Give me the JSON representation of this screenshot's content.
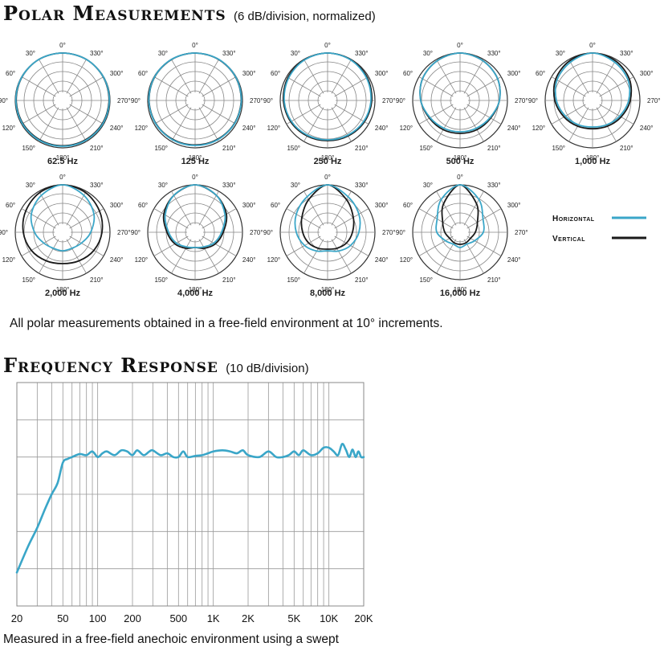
{
  "polar": {
    "title": "Polar Measurements",
    "subtitle": "(6 dB/division, normalized)",
    "note": "All polar measurements obtained in a free-field environment at 10° increments."
  },
  "frequency": {
    "title": "Frequency Response",
    "subtitle": "(10 dB/division)",
    "note": "Measured in a free-field anechoic environment using a swept"
  },
  "legend": {
    "horizontal_label": "Horizontal",
    "vertical_label": "Vertical",
    "horizontal_color": "#3aa6c8",
    "vertical_color": "#1a1a1a"
  },
  "chart_data": [
    {
      "type": "polar",
      "units": "dB",
      "division_db": 6,
      "normalized": true,
      "angle_labels": [
        "0°",
        "30°",
        "60°",
        "90°",
        "120°",
        "150°",
        "180°",
        "210°",
        "240°",
        "270°",
        "300°",
        "330°"
      ],
      "angles_deg": [
        0,
        30,
        60,
        90,
        120,
        150,
        180,
        210,
        240,
        270,
        300,
        330
      ],
      "series_names": [
        "Horizontal",
        "Vertical"
      ],
      "plots": [
        {
          "label": "62.5 Hz",
          "horizontal": [
            0,
            0,
            -0.2,
            -0.4,
            -0.6,
            -0.8,
            -1,
            -0.8,
            -0.6,
            -0.4,
            -0.2,
            0
          ],
          "vertical": [
            0,
            0,
            -0.3,
            -0.6,
            -0.9,
            -1.2,
            -1.3,
            -1.2,
            -0.9,
            -0.6,
            -0.3,
            0
          ]
        },
        {
          "label": "125 Hz",
          "horizontal": [
            0,
            0,
            -0.3,
            -0.7,
            -1,
            -1.3,
            -1.5,
            -1.3,
            -1,
            -0.7,
            -0.3,
            0
          ],
          "vertical": [
            0,
            -0.1,
            -0.4,
            -0.8,
            -1.2,
            -1.6,
            -1.8,
            -1.6,
            -1.2,
            -0.8,
            -0.4,
            -0.1
          ]
        },
        {
          "label": "250 Hz",
          "horizontal": [
            0,
            -0.5,
            -1.5,
            -2.5,
            -3.5,
            -4.5,
            -5,
            -4.5,
            -3.5,
            -2.5,
            -1.5,
            -0.5
          ],
          "vertical": [
            0,
            -0.3,
            -1,
            -2,
            -3,
            -4,
            -4.5,
            -4,
            -3,
            -2,
            -1,
            -0.3
          ]
        },
        {
          "label": "500 Hz",
          "horizontal": [
            0,
            -1,
            -2.5,
            -5,
            -8,
            -9.5,
            -10,
            -9.5,
            -8,
            -5,
            -2.5,
            -1
          ],
          "vertical": [
            0,
            -1,
            -2.5,
            -5,
            -7.5,
            -8.5,
            -9,
            -8.5,
            -7.5,
            -5,
            -2.5,
            -1
          ]
        },
        {
          "label": "1,000 Hz",
          "horizontal": [
            0,
            -2,
            -4,
            -7,
            -10,
            -12,
            -13,
            -12,
            -10,
            -7,
            -4,
            -2
          ],
          "vertical": [
            0,
            -1,
            -3,
            -6,
            -9,
            -11,
            -12,
            -11,
            -9,
            -6,
            -3,
            -1
          ]
        },
        {
          "label": "2,000 Hz",
          "horizontal": [
            0,
            -3,
            -7,
            -12,
            -16,
            -18,
            -18,
            -18,
            -16,
            -12,
            -7,
            -3
          ],
          "vertical": [
            0,
            -1,
            -3,
            -5,
            -7,
            -9,
            -10,
            -9,
            -7,
            -5,
            -3,
            -1
          ]
        },
        {
          "label": "4,000 Hz",
          "horizontal": [
            0,
            -3,
            -8,
            -13,
            -16,
            -19,
            -20,
            -19,
            -16,
            -13,
            -8,
            -3
          ],
          "vertical": [
            0,
            -3,
            -7,
            -12,
            -15,
            -18,
            -20,
            -18,
            -15,
            -12,
            -7,
            -3
          ]
        },
        {
          "label": "8,000 Hz",
          "horizontal": [
            0,
            -4,
            -7,
            -10,
            -13,
            -16,
            -18,
            -16,
            -13,
            -10,
            -7,
            -4
          ],
          "vertical": [
            0,
            -6,
            -11,
            -14,
            -16,
            -18,
            -19,
            -18,
            -16,
            -14,
            -11,
            -6
          ]
        },
        {
          "label": "16,000 Hz",
          "horizontal": [
            0,
            -6,
            -13,
            -15,
            -19,
            -21,
            -20,
            -21,
            -19,
            -15,
            -13,
            -6
          ],
          "vertical": [
            0,
            -9,
            -17,
            -20,
            -22,
            -22,
            -22,
            -22,
            -22,
            -20,
            -17,
            -9
          ]
        }
      ]
    },
    {
      "type": "line",
      "title": "Frequency Response",
      "x_scale": "log",
      "xlim": [
        20,
        20000
      ],
      "x_tick_labels": [
        "20",
        "50",
        "100",
        "200",
        "500",
        "1K",
        "2K",
        "5K",
        "10K",
        "20K"
      ],
      "x_ticks": [
        20,
        50,
        100,
        200,
        500,
        1000,
        2000,
        5000,
        10000,
        20000
      ],
      "division_db": 10,
      "ylim": [
        -40,
        20
      ],
      "grid": true,
      "series": [
        {
          "name": "Horizontal",
          "x": [
            20,
            25,
            30,
            35,
            40,
            45,
            50,
            55,
            60,
            70,
            80,
            90,
            100,
            110,
            120,
            140,
            160,
            180,
            200,
            220,
            250,
            280,
            300,
            350,
            400,
            450,
            500,
            550,
            600,
            700,
            800,
            900,
            1000,
            1200,
            1400,
            1600,
            1800,
            2000,
            2500,
            3000,
            3500,
            4000,
            4500,
            5000,
            5500,
            6000,
            7000,
            8000,
            9000,
            10000,
            11000,
            12000,
            13000,
            14000,
            15000,
            16000,
            17000,
            18000,
            19000,
            20000
          ],
          "y": [
            -31,
            -24,
            -19,
            -14,
            -10,
            -7,
            -1.5,
            -0.5,
            0,
            0.8,
            0.5,
            1.5,
            0,
            1,
            1.5,
            0.5,
            1.8,
            1.5,
            0.5,
            1.8,
            0.5,
            1.5,
            1.8,
            0.5,
            1,
            0,
            0,
            1.5,
            0,
            0.3,
            0.5,
            1,
            1.5,
            1.8,
            1.5,
            1,
            1.8,
            0.5,
            0,
            1.5,
            0,
            0,
            0.5,
            1.5,
            0.5,
            1.8,
            0.5,
            1,
            2.5,
            2.5,
            1.5,
            0.5,
            3.5,
            2,
            0,
            2,
            0,
            1.5,
            0,
            0
          ]
        }
      ]
    }
  ]
}
